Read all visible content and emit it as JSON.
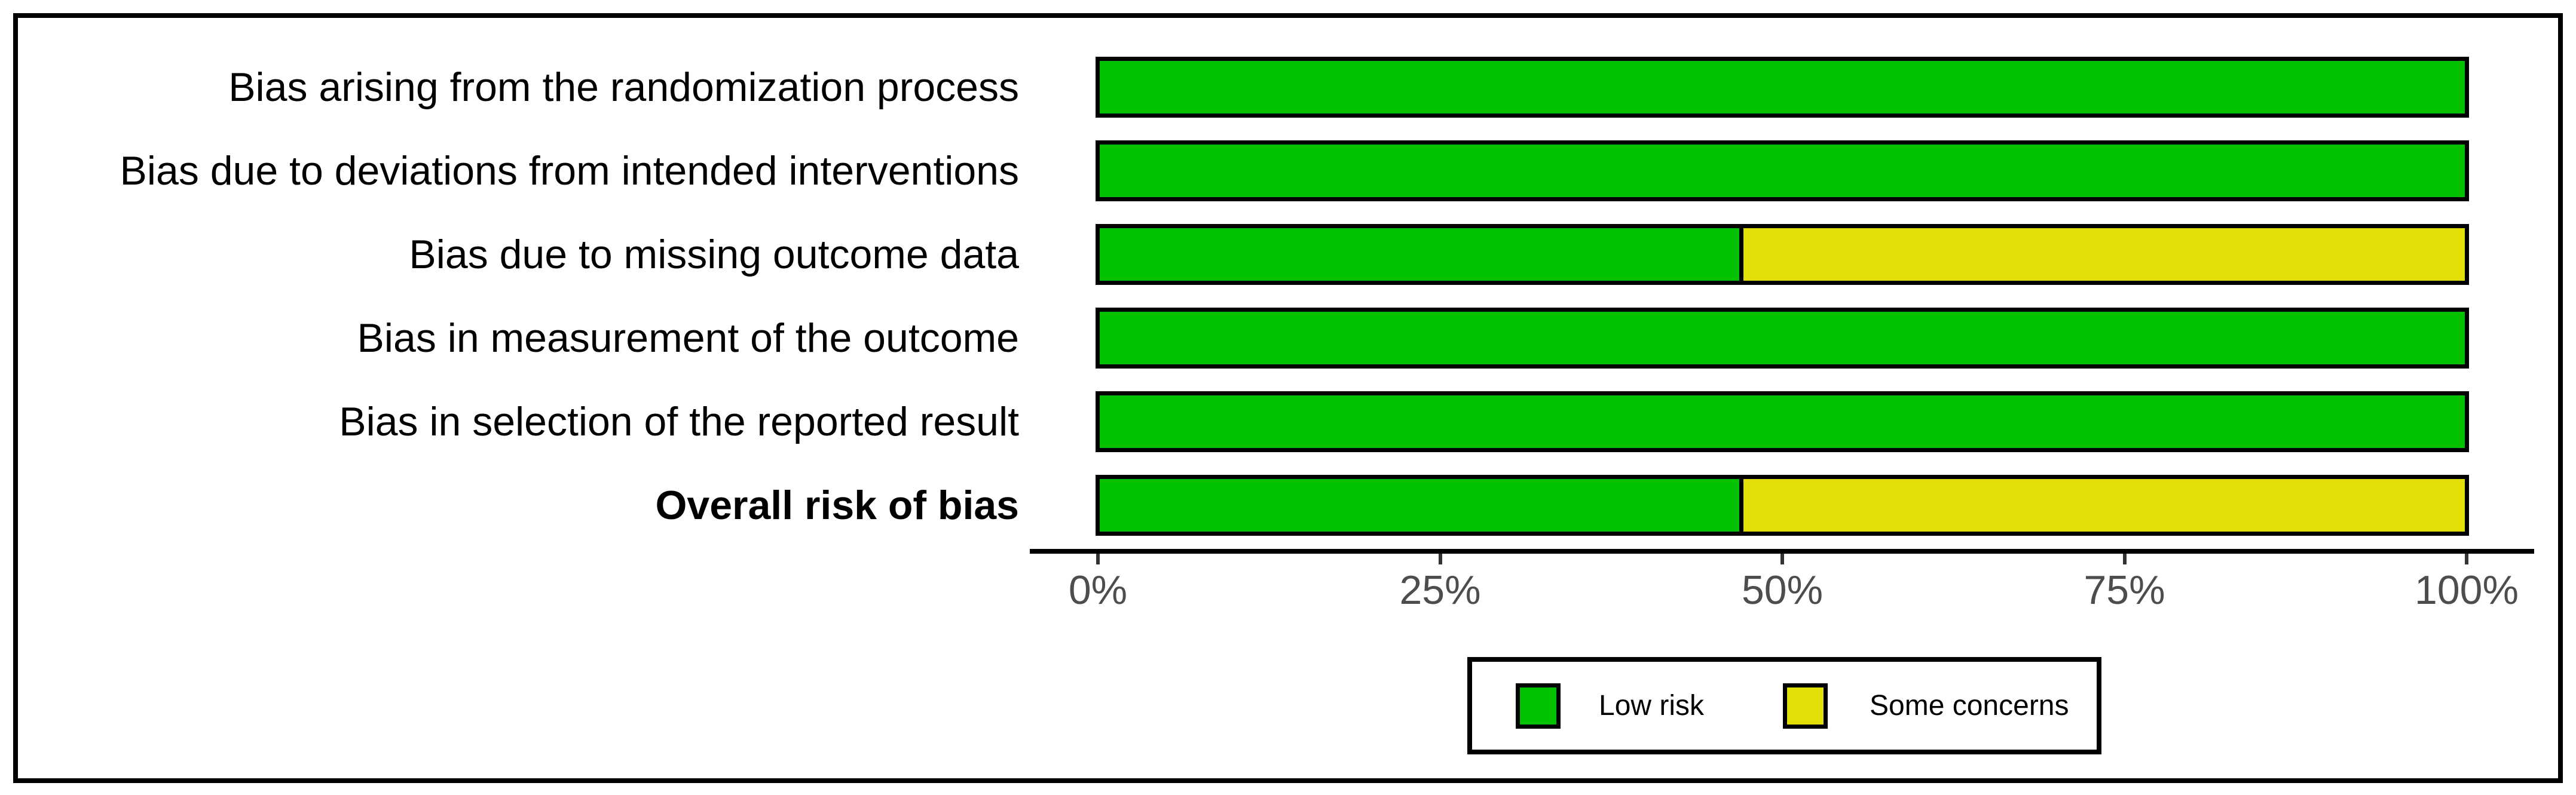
{
  "chart_data": {
    "type": "bar",
    "orientation": "horizontal",
    "stacked": true,
    "title": "",
    "xlabel": "",
    "ylabel": "",
    "xlim": [
      0,
      100
    ],
    "x_ticks": [
      {
        "value": 0,
        "label": "0%"
      },
      {
        "value": 25,
        "label": "25%"
      },
      {
        "value": 50,
        "label": "50%"
      },
      {
        "value": 75,
        "label": "75%"
      },
      {
        "value": 100,
        "label": "100%"
      }
    ],
    "grid": false,
    "legend_position": "bottom-center",
    "categories": [
      {
        "label": "Bias arising from the randomization process",
        "bold": false
      },
      {
        "label": "Bias due to deviations from intended interventions",
        "bold": false
      },
      {
        "label": "Bias due to missing outcome data",
        "bold": false
      },
      {
        "label": "Bias in measurement of the outcome",
        "bold": false
      },
      {
        "label": "Bias in selection of the reported result",
        "bold": false
      },
      {
        "label": "Overall risk of bias",
        "bold": true
      }
    ],
    "series": [
      {
        "name": "Low risk",
        "color": "#02C100",
        "values": [
          100,
          100,
          47,
          100,
          100,
          47
        ]
      },
      {
        "name": "Some concerns",
        "color": "#E2DF07",
        "values": [
          0,
          0,
          53,
          0,
          0,
          53
        ]
      }
    ],
    "colors": {
      "bar_border": "#000000",
      "axis_line": "#000000",
      "tick": "#333333",
      "tick_label": "#4d4d4d",
      "category_label": "#000000",
      "frame": "#000000",
      "background": "#ffffff"
    }
  }
}
